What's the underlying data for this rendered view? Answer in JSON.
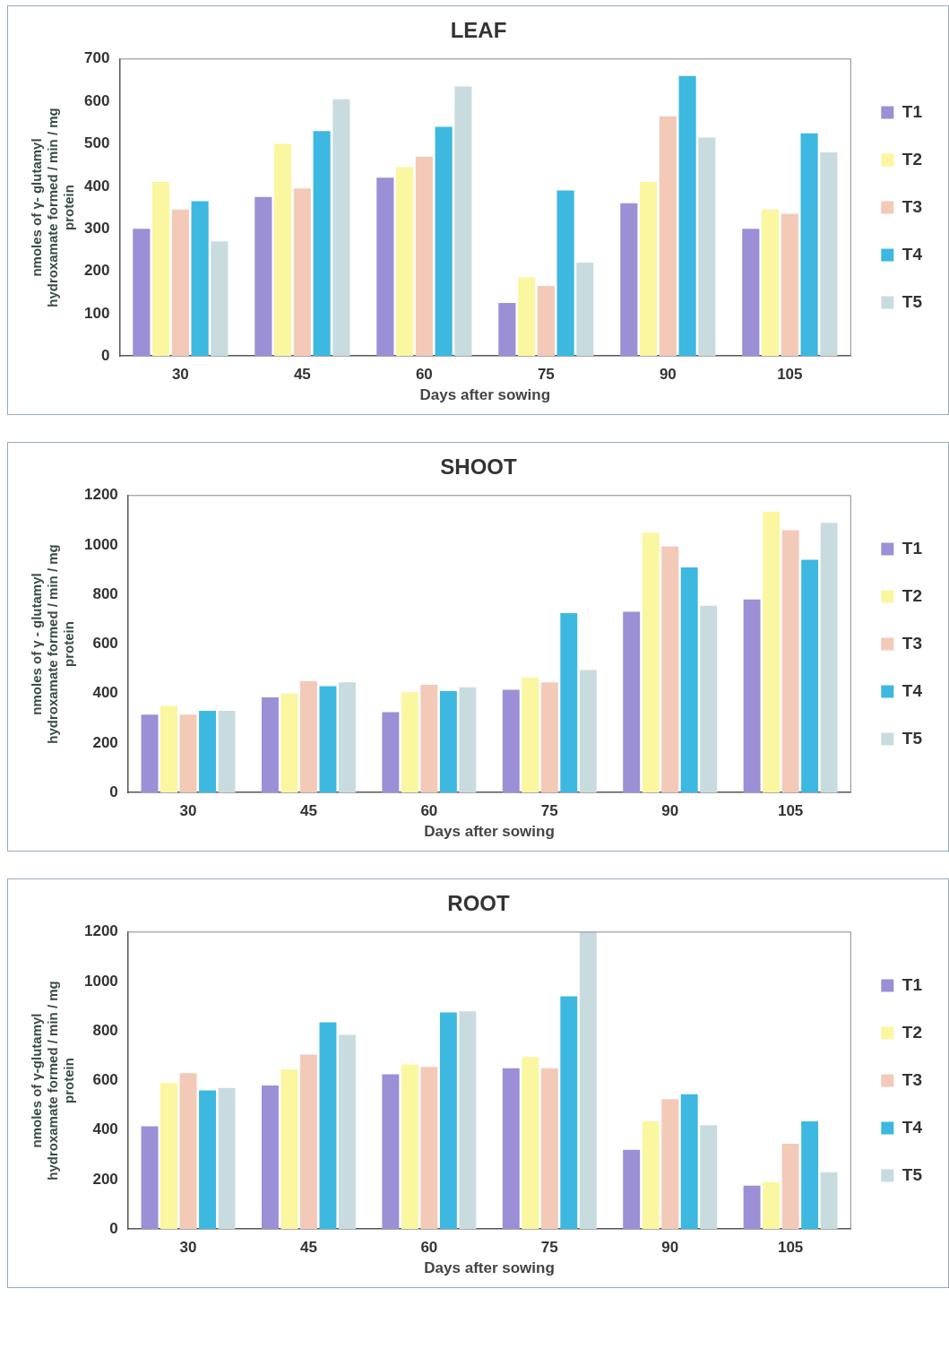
{
  "chart_data": [
    {
      "type": "bar",
      "title": "LEAF",
      "xlabel": "Days after sowing",
      "ylabel": "nmoles of γ- glutamyl hydroxamate formed / min / mg protein",
      "categories": [
        "30",
        "45",
        "60",
        "75",
        "90",
        "105"
      ],
      "ylim": [
        0,
        700
      ],
      "yticks": [
        0,
        100,
        200,
        300,
        400,
        500,
        600,
        700
      ],
      "grid": false,
      "legend": "right",
      "series": [
        {
          "name": "T1",
          "color": "#9b8fd6",
          "values": [
            300,
            375,
            420,
            125,
            360,
            300
          ]
        },
        {
          "name": "T2",
          "color": "#fbf6a0",
          "values": [
            410,
            500,
            445,
            185,
            410,
            345
          ]
        },
        {
          "name": "T3",
          "color": "#f3c9b8",
          "values": [
            345,
            395,
            470,
            165,
            565,
            335
          ]
        },
        {
          "name": "T4",
          "color": "#3db8e0",
          "values": [
            365,
            530,
            540,
            390,
            660,
            525
          ]
        },
        {
          "name": "T5",
          "color": "#c8dce0",
          "values": [
            270,
            605,
            635,
            220,
            515,
            480
          ]
        }
      ]
    },
    {
      "type": "bar",
      "title": "SHOOT",
      "xlabel": "Days after sowing",
      "ylabel": "nmoles of γ - glutamyl hydroxamate formed / min / mg protein",
      "categories": [
        "30",
        "45",
        "60",
        "75",
        "90",
        "105"
      ],
      "ylim": [
        0,
        1200
      ],
      "yticks": [
        0,
        200,
        400,
        600,
        800,
        1000,
        1200
      ],
      "grid": false,
      "legend": "right",
      "series": [
        {
          "name": "T1",
          "color": "#9b8fd6",
          "values": [
            315,
            385,
            325,
            415,
            730,
            780
          ]
        },
        {
          "name": "T2",
          "color": "#fbf6a0",
          "values": [
            350,
            400,
            405,
            465,
            1050,
            1135
          ]
        },
        {
          "name": "T3",
          "color": "#f3c9b8",
          "values": [
            315,
            450,
            435,
            445,
            995,
            1060
          ]
        },
        {
          "name": "T4",
          "color": "#3db8e0",
          "values": [
            330,
            430,
            410,
            725,
            910,
            940
          ]
        },
        {
          "name": "T5",
          "color": "#c8dce0",
          "values": [
            330,
            445,
            425,
            495,
            755,
            1090
          ]
        }
      ]
    },
    {
      "type": "bar",
      "title": "ROOT",
      "xlabel": "Days after sowing",
      "ylabel": "nmoles of γ-glutamyl hydroxamate formed / min / mg protein",
      "categories": [
        "30",
        "45",
        "60",
        "75",
        "90",
        "105"
      ],
      "ylim": [
        0,
        1200
      ],
      "yticks": [
        0,
        200,
        400,
        600,
        800,
        1000,
        1200
      ],
      "grid": false,
      "legend": "right",
      "series": [
        {
          "name": "T1",
          "color": "#9b8fd6",
          "values": [
            415,
            580,
            625,
            650,
            320,
            175
          ]
        },
        {
          "name": "T2",
          "color": "#fbf6a0",
          "values": [
            590,
            645,
            665,
            695,
            435,
            190
          ]
        },
        {
          "name": "T3",
          "color": "#f3c9b8",
          "values": [
            630,
            705,
            655,
            650,
            525,
            345
          ]
        },
        {
          "name": "T4",
          "color": "#3db8e0",
          "values": [
            560,
            835,
            875,
            940,
            545,
            435
          ]
        },
        {
          "name": "T5",
          "color": "#c8dce0",
          "values": [
            570,
            785,
            880,
            1200,
            420,
            230
          ]
        }
      ]
    }
  ]
}
